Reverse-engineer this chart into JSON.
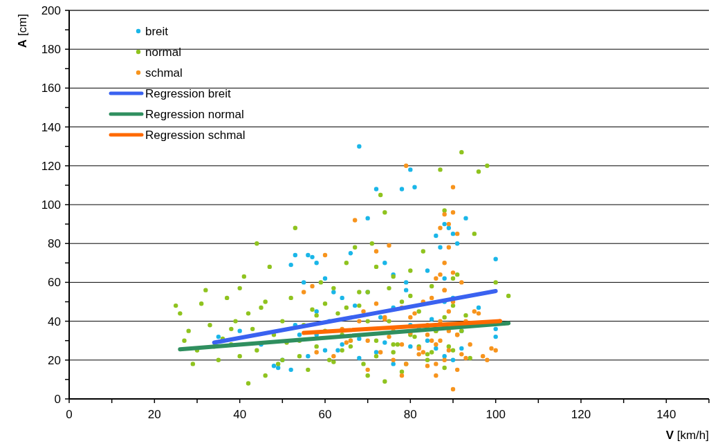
{
  "chart_data": {
    "type": "scatter",
    "xlabel": "V [km/h]",
    "ylabel": "A [cm]",
    "xlim": [
      0,
      150
    ],
    "xticks": [
      0,
      {
        "value": 10,
        "label": null
      },
      20,
      {
        "value": 30,
        "label": null
      },
      40,
      {
        "value": 50,
        "label": null
      },
      60,
      {
        "value": 70,
        "label": null
      },
      80,
      {
        "value": 90,
        "label": null
      },
      100,
      {
        "value": 110,
        "label": null
      },
      120,
      {
        "value": 130,
        "label": null
      },
      140,
      {
        "value": 150,
        "label": null
      }
    ],
    "ylim": [
      0,
      200
    ],
    "yticks": [
      0,
      {
        "value": 10,
        "label": null
      },
      20,
      {
        "value": 30,
        "label": null
      },
      40,
      {
        "value": 50,
        "label": null
      },
      60,
      {
        "value": 70,
        "label": null
      },
      80,
      {
        "value": 90,
        "label": null
      },
      100,
      {
        "value": 110,
        "label": null
      },
      120,
      {
        "value": 130,
        "label": null
      },
      140,
      {
        "value": 150,
        "label": null
      },
      160,
      {
        "value": 170,
        "label": null
      },
      180,
      {
        "value": 190,
        "label": null
      },
      200
    ],
    "grid": "y",
    "legend": "top left",
    "marker": "circle",
    "line_style": "solid",
    "series": [
      {
        "name": "breit",
        "color": "#1ab6e8",
        "x": [
          68,
          80,
          81,
          72,
          78,
          70,
          88,
          89,
          90,
          91,
          93,
          100,
          52,
          53,
          56,
          57,
          58,
          55,
          60,
          62,
          66,
          74,
          76,
          79,
          84,
          86,
          87,
          88,
          90,
          50,
          54,
          58,
          61,
          64,
          67,
          70,
          73,
          76,
          79,
          82,
          85,
          88,
          92,
          96,
          100,
          48,
          52,
          56,
          60,
          64,
          68,
          72,
          76,
          80,
          84,
          88,
          92,
          35,
          40,
          45,
          49,
          53,
          58,
          63,
          68,
          74,
          80,
          86,
          90,
          100
        ],
        "values": [
          130,
          118,
          109,
          108,
          108,
          93,
          90,
          88,
          85,
          80,
          93,
          72,
          69,
          74,
          74,
          73,
          70,
          60,
          62,
          55,
          75,
          70,
          64,
          56,
          66,
          84,
          78,
          62,
          52,
          20,
          33,
          45,
          40,
          52,
          48,
          55,
          42,
          47,
          60,
          36,
          41,
          50,
          35,
          47,
          32,
          17,
          15,
          22,
          25,
          28,
          21,
          24,
          18,
          27,
          30,
          22,
          26,
          32,
          35,
          28,
          16,
          38,
          33,
          25,
          31,
          29,
          38,
          26,
          20,
          36
        ]
      },
      {
        "name": "normal",
        "color": "#8fc31f",
        "x": [
          25,
          26,
          27,
          29,
          30,
          31,
          32,
          33,
          35,
          36,
          37,
          38,
          39,
          40,
          40,
          41,
          42,
          43,
          44,
          44,
          45,
          46,
          47,
          48,
          49,
          50,
          51,
          52,
          53,
          54,
          55,
          56,
          57,
          58,
          59,
          60,
          61,
          62,
          63,
          64,
          65,
          66,
          67,
          68,
          69,
          70,
          71,
          72,
          73,
          74,
          75,
          76,
          77,
          78,
          79,
          80,
          81,
          82,
          83,
          84,
          85,
          86,
          87,
          88,
          89,
          90,
          91,
          92,
          93,
          94,
          95,
          96,
          98,
          100,
          103,
          28,
          34,
          38,
          42,
          46,
          50,
          54,
          58,
          62,
          66,
          70,
          74,
          78,
          82,
          86,
          90,
          65,
          70,
          75,
          80,
          85,
          90,
          72,
          76,
          84,
          88,
          92,
          60,
          64,
          68,
          72,
          76,
          80,
          84,
          88
        ],
        "values": [
          48,
          44,
          30,
          18,
          25,
          49,
          56,
          38,
          20,
          31,
          52,
          28,
          40,
          57,
          22,
          63,
          8,
          36,
          80,
          25,
          47,
          12,
          68,
          33,
          18,
          40,
          29,
          52,
          88,
          22,
          38,
          15,
          46,
          27,
          60,
          35,
          20,
          57,
          44,
          25,
          70,
          30,
          78,
          48,
          18,
          55,
          80,
          22,
          105,
          96,
          40,
          63,
          28,
          50,
          18,
          66,
          32,
          45,
          76,
          23,
          58,
          35,
          118,
          97,
          27,
          48,
          64,
          127,
          43,
          21,
          85,
          117,
          120,
          60,
          53,
          35,
          27,
          36,
          44,
          50,
          20,
          30,
          43,
          19,
          27,
          12,
          9,
          14,
          27,
          35,
          25,
          47,
          40,
          57,
          33,
          24,
          62,
          30,
          24,
          20,
          16,
          35,
          49,
          33,
          55,
          68,
          28,
          53,
          37,
          42
        ]
      },
      {
        "name": "schmal",
        "color": "#f7941d",
        "x": [
          55,
          57,
          60,
          64,
          67,
          69,
          70,
          72,
          73,
          75,
          76,
          78,
          79,
          80,
          81,
          82,
          83,
          84,
          85,
          86,
          86,
          87,
          87,
          88,
          88,
          89,
          89,
          90,
          90,
          91,
          91,
          92,
          93,
          95,
          97,
          98,
          100,
          101,
          62,
          66,
          70,
          74,
          78,
          82,
          85,
          87,
          89,
          91,
          93,
          96,
          99,
          72,
          76,
          80,
          84,
          86,
          88,
          90,
          92,
          65,
          75,
          79,
          83,
          87,
          89,
          90,
          58,
          68,
          74,
          78,
          84,
          88,
          91,
          94,
          86,
          88,
          89,
          90
        ],
        "values": [
          55,
          58,
          74,
          36,
          92,
          45,
          30,
          76,
          24,
          79,
          20,
          28,
          120,
          34,
          44,
          26,
          50,
          38,
          30,
          18,
          62,
          40,
          88,
          95,
          70,
          35,
          25,
          109,
          50,
          85,
          15,
          60,
          40,
          45,
          22,
          20,
          25,
          40,
          22,
          30,
          15,
          41,
          12,
          23,
          52,
          64,
          45,
          33,
          21,
          44,
          26,
          49,
          35,
          42,
          17,
          28,
          56,
          5,
          23,
          29,
          32,
          18,
          24,
          30,
          78,
          65,
          24,
          40,
          42,
          47,
          33,
          20,
          33,
          28,
          12,
          56,
          90,
          96
        ]
      },
      {
        "name": "Regression breit",
        "type": "line",
        "marker": "none",
        "color": "#3a62f0",
        "x": [
          34,
          100
        ],
        "values": [
          29,
          55.5
        ]
      },
      {
        "name": "Regression normal",
        "type": "line",
        "marker": "none",
        "color": "#2f8f5f",
        "x": [
          26,
          103
        ],
        "values": [
          25.5,
          39
        ]
      },
      {
        "name": "Regression schmal",
        "type": "line",
        "marker": "none",
        "color": "#ff6a00",
        "x": [
          55,
          101
        ],
        "values": [
          34,
          40
        ]
      }
    ]
  }
}
